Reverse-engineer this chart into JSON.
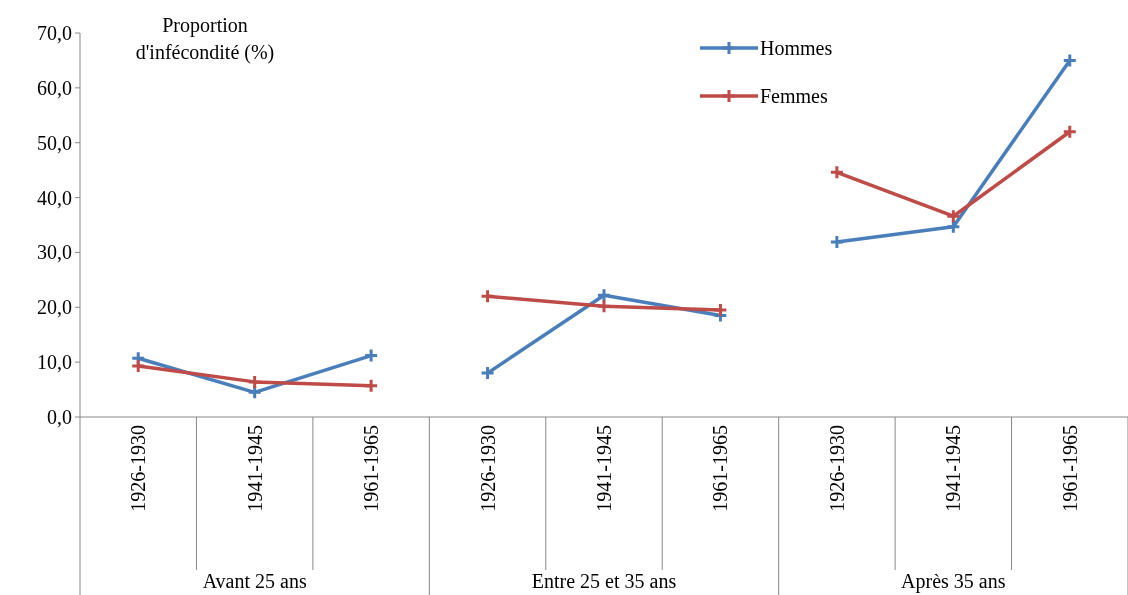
{
  "chart_data": {
    "type": "line",
    "ylabel": "Proportion\nd'infécondité (%)",
    "categories": [
      "1926-1930",
      "1941-1945",
      "1961-1965",
      "1926-1930",
      "1941-1945",
      "1961-1965",
      "1926-1930",
      "1941-1945",
      "1961-1965"
    ],
    "annotations": [
      "Avant 25 ans",
      "Entre 25 et 35 ans",
      "Après 35 ans"
    ],
    "series": [
      {
        "name": "Hommes",
        "color": "#4a7ebb",
        "values": [
          10.7,
          4.5,
          11.2,
          8.0,
          22.2,
          18.5,
          31.9,
          34.7,
          65.0
        ]
      },
      {
        "name": "Femmes",
        "color": "#be4b48",
        "values": [
          9.3,
          6.4,
          5.7,
          22.0,
          20.2,
          19.5,
          44.6,
          36.6,
          52.0
        ]
      }
    ],
    "ylim": [
      0,
      70
    ],
    "yticks": [
      {
        "value": 0,
        "label": "0,0"
      },
      {
        "value": 10,
        "label": "10,0"
      },
      {
        "value": 20,
        "label": "20,0"
      },
      {
        "value": 30,
        "label": "30,0"
      },
      {
        "value": 40,
        "label": "40,0"
      },
      {
        "value": 50,
        "label": "50,0"
      },
      {
        "value": 60,
        "label": "60,0"
      },
      {
        "value": 70,
        "label": "70,0"
      }
    ],
    "legend": "top right",
    "marker": "cross",
    "line_style": "solid",
    "grid": false
  }
}
